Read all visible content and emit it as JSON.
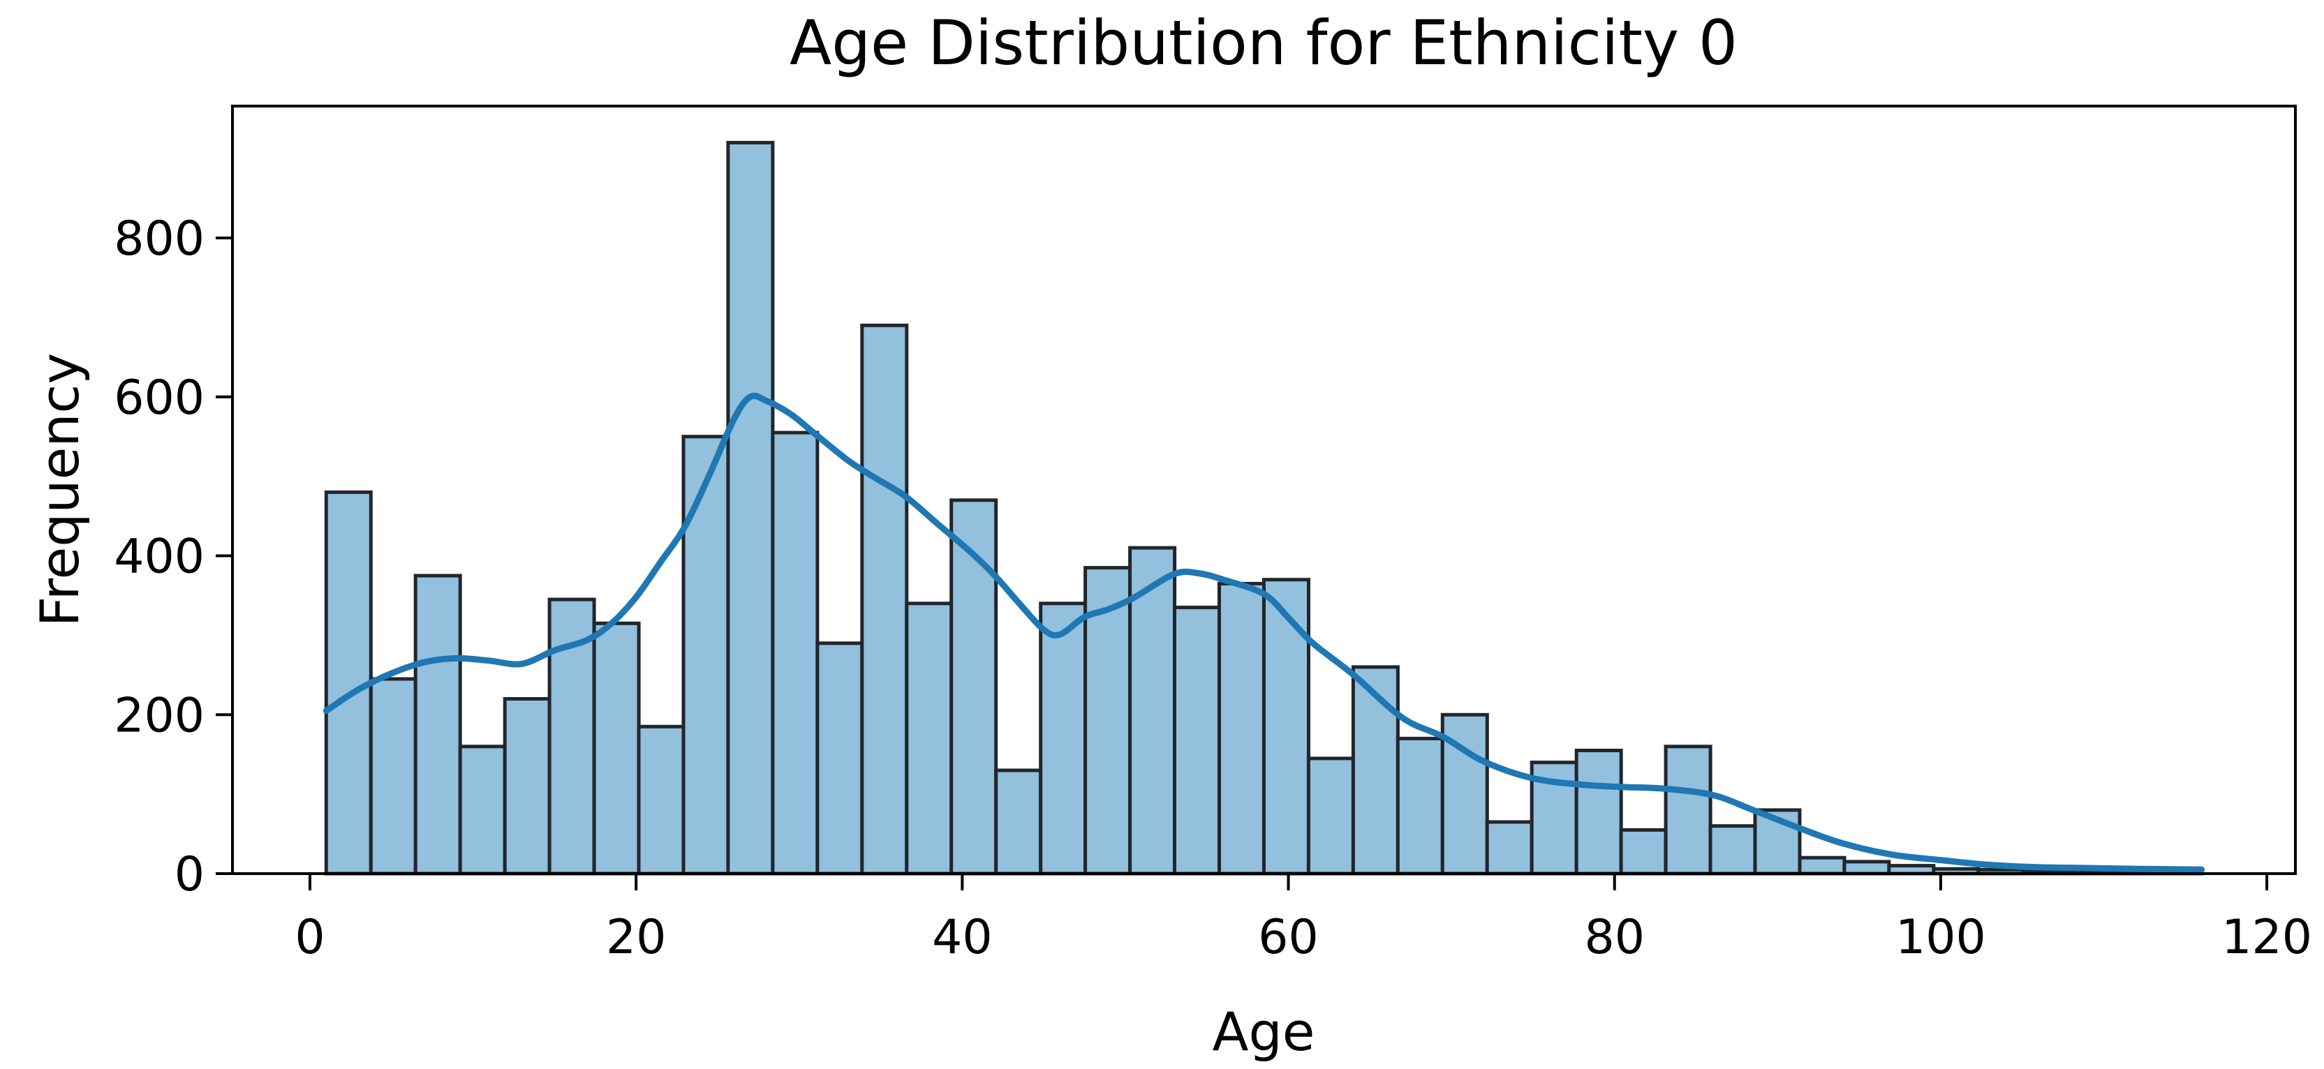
{
  "chart_data": {
    "type": "bar",
    "subtype": "histogram_with_kde",
    "title": "Age Distribution for Ethnicity 0",
    "xlabel": "Age",
    "ylabel": "Frequency",
    "xlim": [
      -4.75,
      121.75
    ],
    "ylim": [
      0,
      966
    ],
    "x_ticks": [
      0,
      20,
      40,
      60,
      80,
      100,
      120
    ],
    "y_ticks": [
      0,
      200,
      400,
      600,
      800
    ],
    "grid": false,
    "legend": "none",
    "bin_start": 1,
    "bin_width": 2.738,
    "bar_values": [
      480,
      245,
      375,
      160,
      220,
      345,
      315,
      185,
      550,
      920,
      555,
      290,
      690,
      340,
      470,
      130,
      340,
      385,
      410,
      335,
      365,
      370,
      145,
      260,
      170,
      200,
      65,
      140,
      155,
      55,
      160,
      60,
      80,
      20,
      15,
      10,
      6,
      5,
      4,
      3,
      2,
      2
    ],
    "kde_points": [
      [
        1,
        205
      ],
      [
        3,
        232
      ],
      [
        5,
        252
      ],
      [
        7,
        266
      ],
      [
        9,
        271
      ],
      [
        11,
        268
      ],
      [
        13,
        264
      ],
      [
        15,
        281
      ],
      [
        17,
        294
      ],
      [
        18.5,
        315
      ],
      [
        20,
        348
      ],
      [
        21.5,
        392
      ],
      [
        23,
        437
      ],
      [
        24.5,
        502
      ],
      [
        26,
        572
      ],
      [
        27,
        600
      ],
      [
        28,
        595
      ],
      [
        29.5,
        578
      ],
      [
        31,
        553
      ],
      [
        33,
        520
      ],
      [
        34.5,
        500
      ],
      [
        36.5,
        475
      ],
      [
        38.5,
        440
      ],
      [
        40.5,
        405
      ],
      [
        42,
        375
      ],
      [
        43.5,
        340
      ],
      [
        45,
        307
      ],
      [
        46,
        301
      ],
      [
        47.5,
        323
      ],
      [
        49,
        333
      ],
      [
        50.5,
        347
      ],
      [
        53,
        377
      ],
      [
        54.5,
        378
      ],
      [
        56,
        370
      ],
      [
        58.5,
        352
      ],
      [
        60,
        322
      ],
      [
        61.5,
        290
      ],
      [
        64,
        250
      ],
      [
        67,
        196
      ],
      [
        69.5,
        172
      ],
      [
        72,
        141
      ],
      [
        75,
        120
      ],
      [
        78,
        112
      ],
      [
        80.5,
        109
      ],
      [
        83,
        107
      ],
      [
        86,
        99
      ],
      [
        88.5,
        80
      ],
      [
        91.5,
        56
      ],
      [
        94,
        38
      ],
      [
        97,
        24
      ],
      [
        100,
        17
      ],
      [
        103,
        11
      ],
      [
        106,
        8
      ],
      [
        109,
        7
      ],
      [
        112,
        6
      ],
      [
        116,
        5
      ]
    ],
    "colors": {
      "bar_fill": "#92c0dd",
      "bar_edge": "#22262c",
      "kde_line": "#1f77b4",
      "axis": "#000000",
      "text": "#000000",
      "background": "#ffffff"
    }
  }
}
